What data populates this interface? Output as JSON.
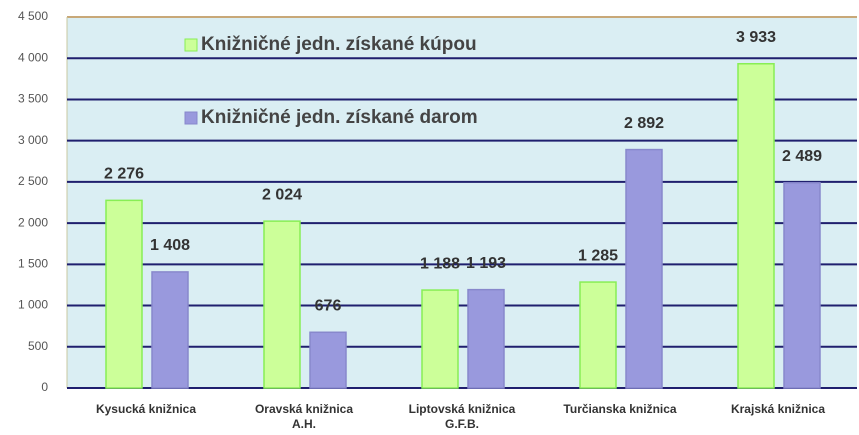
{
  "chart_data": {
    "type": "bar",
    "categories": [
      "Kysucká knižnica",
      "Oravská knižnica\nA.H.",
      "Liptovská knižnica\nG.F.B.",
      "Turčianska knižnica",
      "Krajská knižnica"
    ],
    "series": [
      {
        "name": "Knižničné jedn. získané kúpou",
        "color": "#ccff99",
        "values": [
          2276,
          2024,
          1188,
          1285,
          3933
        ],
        "value_labels": [
          "2 276",
          "2 024",
          "1 188",
          "1 285",
          "3 933"
        ]
      },
      {
        "name": "Knižničné jedn. získané darom",
        "color": "#9999dd",
        "values": [
          1408,
          676,
          1193,
          2892,
          2489
        ],
        "value_labels": [
          "1 408",
          "676",
          "1 193",
          "2 892",
          "2 489"
        ]
      }
    ],
    "ylim": [
      0,
      4500
    ],
    "yticks": [
      0,
      500,
      {
        "value": 1000,
        "label": "1 000"
      },
      {
        "value": 1500,
        "label": "1 500"
      },
      {
        "value": 2000,
        "label": "2 000"
      },
      {
        "value": 2500,
        "label": "2 500"
      },
      {
        "value": 3000,
        "label": "3 000"
      },
      {
        "value": 3500,
        "label": "3 500"
      },
      {
        "value": 4000,
        "label": "4 000"
      },
      {
        "value": 4500,
        "label": "4 500"
      }
    ],
    "grid": true,
    "legend": "upper left"
  }
}
